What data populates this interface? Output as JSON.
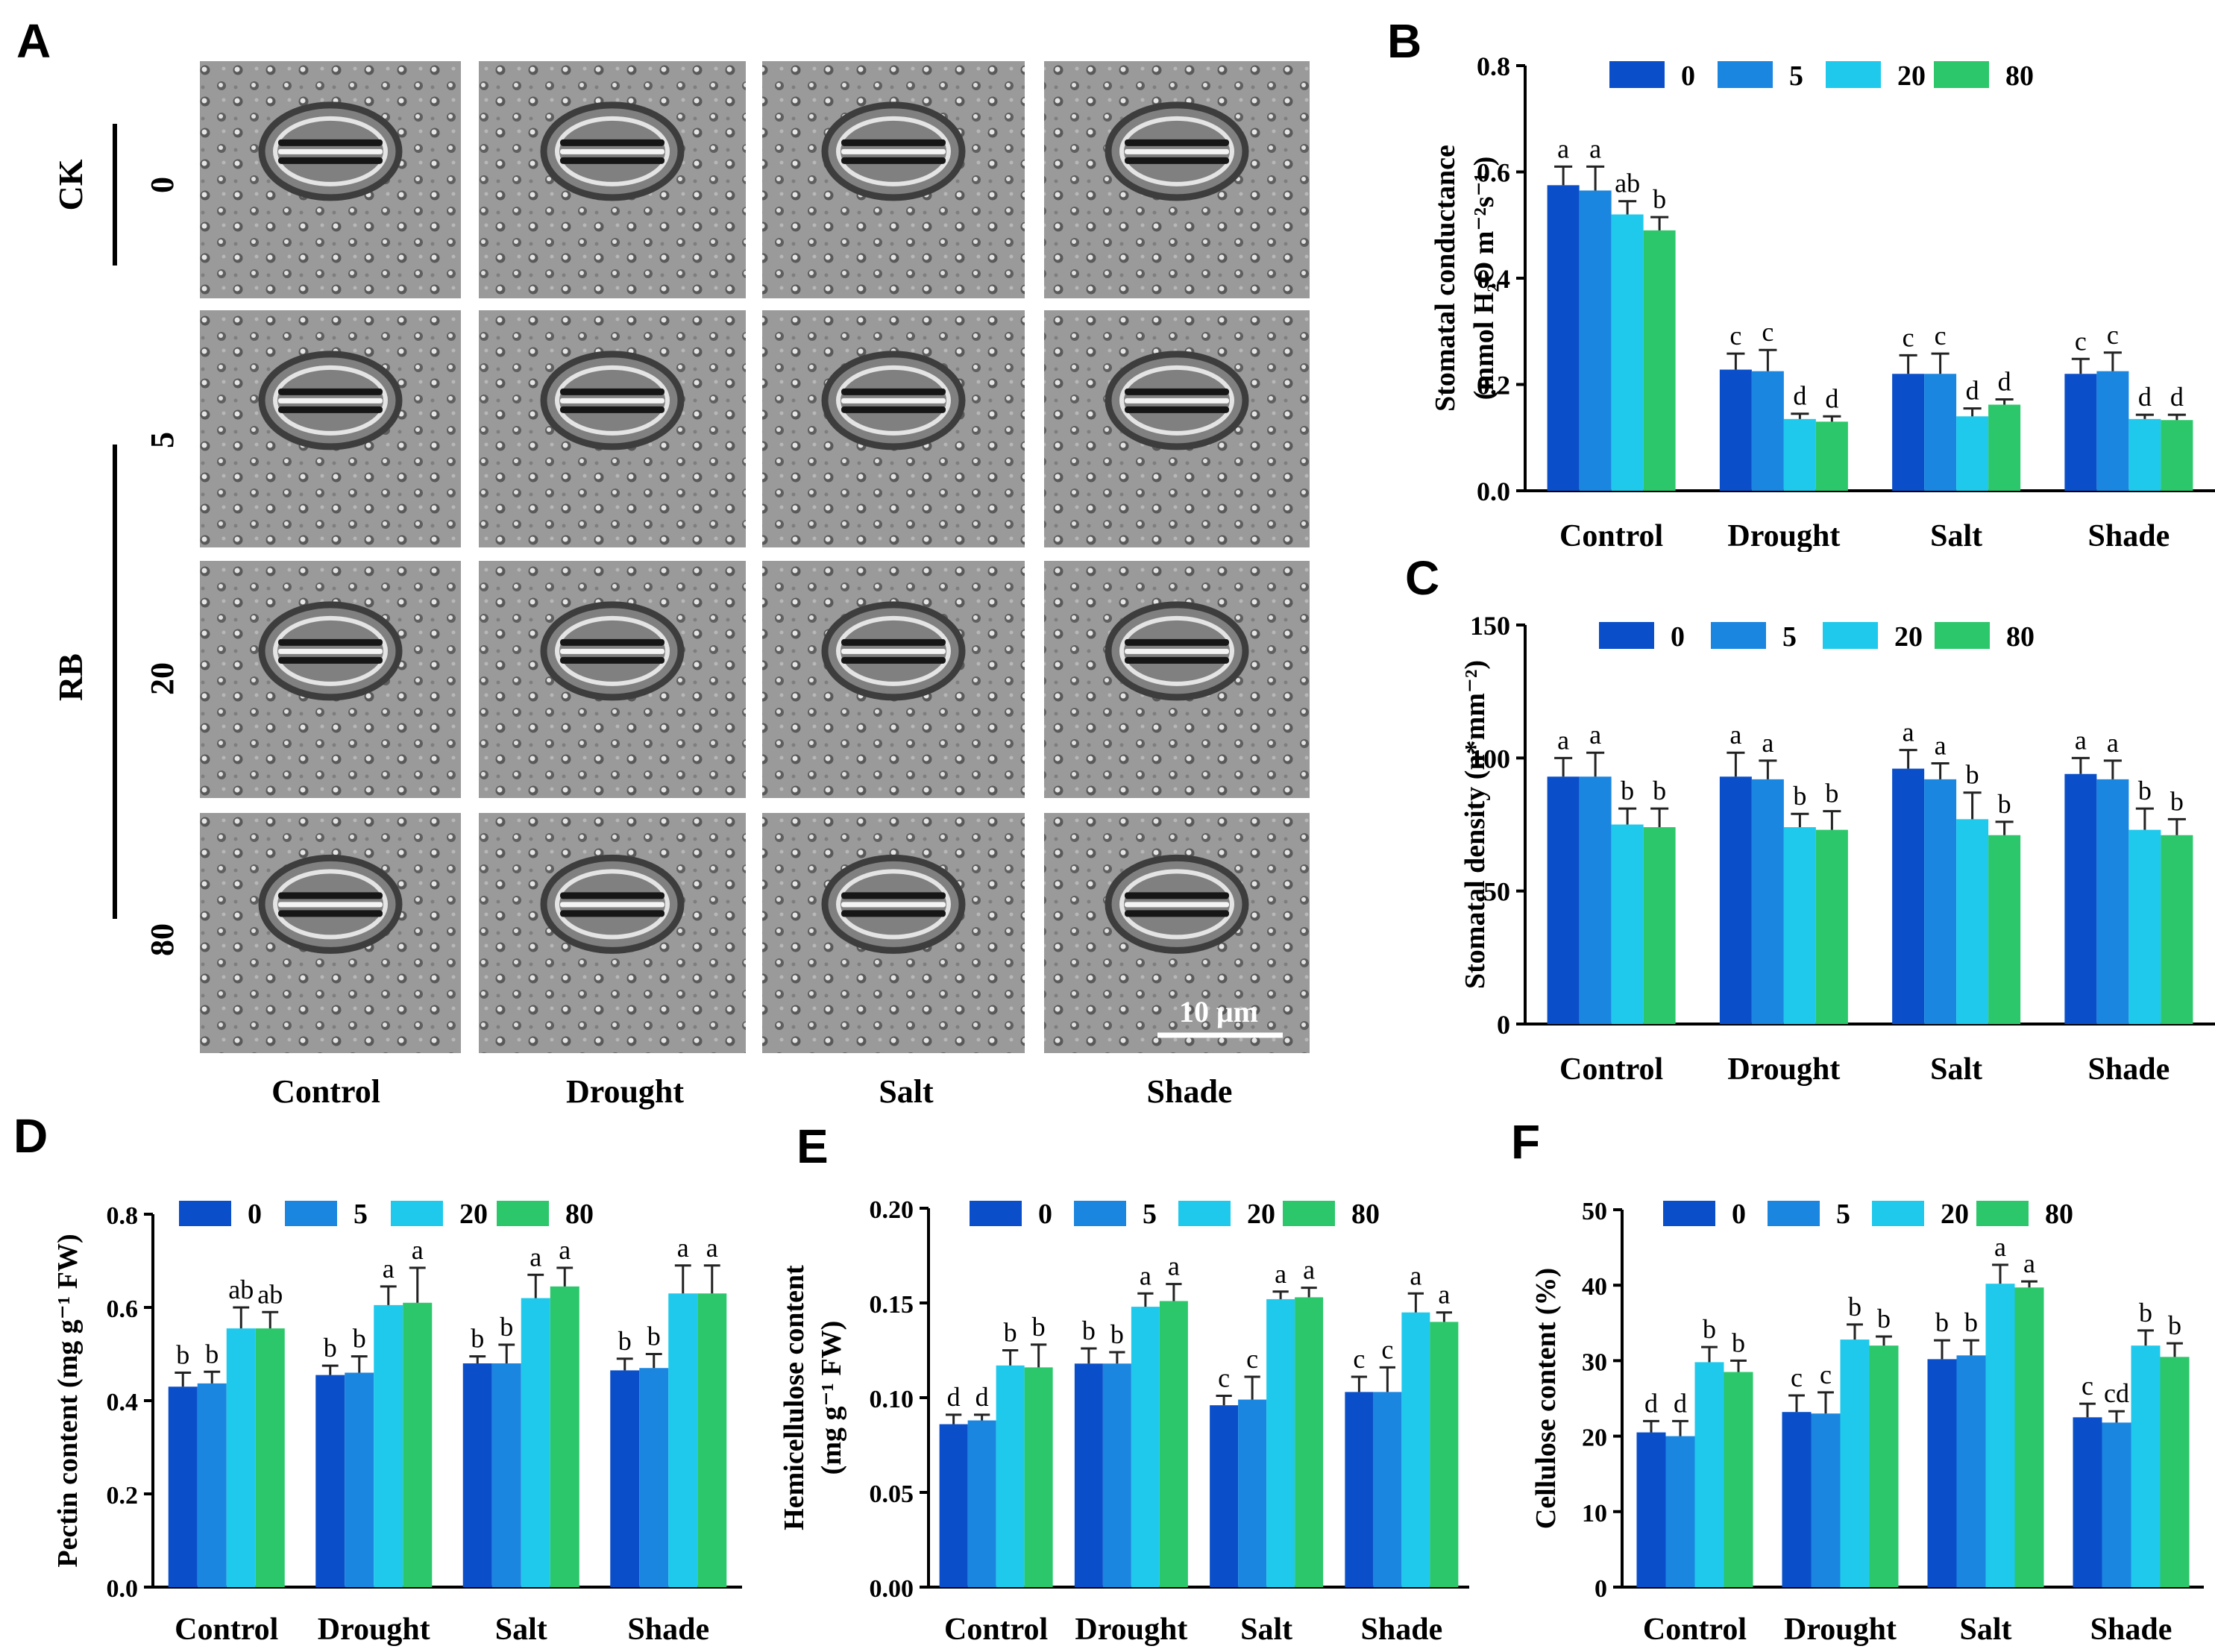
{
  "panel_labels": {
    "A": "A",
    "B": "B",
    "C": "C",
    "D": "D",
    "E": "E",
    "F": "F"
  },
  "micrographs": {
    "row_labels": [
      "0",
      "5",
      "20",
      "80"
    ],
    "group_labels": [
      "CK",
      "RB"
    ],
    "column_labels": [
      "Control",
      "Drought",
      "Salt",
      "Shade"
    ],
    "scale_bar": "10 μm"
  },
  "colors": {
    "s0": "#0a4fc9",
    "s5": "#1a86e0",
    "s20": "#1fc9ec",
    "s80": "#2bc76a"
  },
  "chart_data": [
    {
      "id": "B",
      "type": "bar",
      "title": "",
      "ylabel_lines": [
        "Stomatal conductance",
        "(mmol H₂O m⁻²s⁻¹ )"
      ],
      "xlabel": "",
      "categories": [
        "Control",
        "Drought",
        "Salt",
        "Shade"
      ],
      "legend": [
        "0",
        "5",
        "20",
        "80"
      ],
      "ylim": [
        0,
        0.8
      ],
      "yticks": [
        "0.0",
        "0.2",
        "0.4",
        "0.6",
        "0.8"
      ],
      "series": [
        {
          "name": "0",
          "values": [
            0.575,
            0.228,
            0.22,
            0.22
          ],
          "errors": [
            0.035,
            0.03,
            0.035,
            0.028
          ],
          "letters": [
            "a",
            "c",
            "c",
            "c"
          ]
        },
        {
          "name": "5",
          "values": [
            0.565,
            0.225,
            0.22,
            0.225
          ],
          "errors": [
            0.045,
            0.04,
            0.038,
            0.035
          ],
          "letters": [
            "a",
            "c",
            "c",
            "c"
          ]
        },
        {
          "name": "20",
          "values": [
            0.52,
            0.135,
            0.14,
            0.135
          ],
          "errors": [
            0.025,
            0.01,
            0.015,
            0.008
          ],
          "letters": [
            "ab",
            "d",
            "d",
            "d"
          ]
        },
        {
          "name": "80",
          "values": [
            0.49,
            0.13,
            0.162,
            0.133
          ],
          "errors": [
            0.025,
            0.01,
            0.01,
            0.01
          ],
          "letters": [
            "b",
            "d",
            "d",
            "d"
          ]
        }
      ]
    },
    {
      "id": "C",
      "type": "bar",
      "title": "",
      "ylabel_lines": [
        "Stomatal density (n*mm⁻²)"
      ],
      "xlabel": "",
      "categories": [
        "Control",
        "Drought",
        "Salt",
        "Shade"
      ],
      "legend": [
        "0",
        "5",
        "20",
        "80"
      ],
      "ylim": [
        0,
        150
      ],
      "yticks": [
        "0",
        "50",
        "100",
        "150"
      ],
      "series": [
        {
          "name": "0",
          "values": [
            93,
            93,
            96,
            94
          ],
          "errors": [
            7,
            9,
            7,
            6
          ],
          "letters": [
            "a",
            "a",
            "a",
            "a"
          ]
        },
        {
          "name": "5",
          "values": [
            93,
            92,
            92,
            92
          ],
          "errors": [
            9,
            7,
            6,
            7
          ],
          "letters": [
            "a",
            "a",
            "a",
            "a"
          ]
        },
        {
          "name": "20",
          "values": [
            75,
            74,
            77,
            73
          ],
          "errors": [
            6,
            5,
            10,
            8
          ],
          "letters": [
            "b",
            "b",
            "b",
            "b"
          ]
        },
        {
          "name": "80",
          "values": [
            74,
            73,
            71,
            71
          ],
          "errors": [
            7,
            7,
            5,
            6
          ],
          "letters": [
            "b",
            "b",
            "b",
            "b"
          ]
        }
      ]
    },
    {
      "id": "D",
      "type": "bar",
      "title": "",
      "ylabel_lines": [
        "Pectin content (mg g⁻¹ FW)"
      ],
      "xlabel": "",
      "categories": [
        "Control",
        "Drought",
        "Salt",
        "Shade"
      ],
      "legend": [
        "0",
        "5",
        "20",
        "80"
      ],
      "ylim": [
        0,
        0.8
      ],
      "yticks": [
        "0.0",
        "0.2",
        "0.4",
        "0.6",
        "0.8"
      ],
      "series": [
        {
          "name": "0",
          "values": [
            0.43,
            0.455,
            0.48,
            0.465
          ],
          "errors": [
            0.03,
            0.02,
            0.015,
            0.025
          ],
          "letters": [
            "b",
            "b",
            "b",
            "b"
          ]
        },
        {
          "name": "5",
          "values": [
            0.437,
            0.46,
            0.48,
            0.47
          ],
          "errors": [
            0.025,
            0.035,
            0.04,
            0.03
          ],
          "letters": [
            "b",
            "b",
            "b",
            "b"
          ]
        },
        {
          "name": "20",
          "values": [
            0.555,
            0.605,
            0.62,
            0.63
          ],
          "errors": [
            0.045,
            0.04,
            0.05,
            0.06
          ],
          "letters": [
            "ab",
            "a",
            "a",
            "a"
          ]
        },
        {
          "name": "80",
          "values": [
            0.555,
            0.61,
            0.645,
            0.63
          ],
          "errors": [
            0.035,
            0.075,
            0.04,
            0.06
          ],
          "letters": [
            "ab",
            "a",
            "a",
            "a"
          ]
        }
      ]
    },
    {
      "id": "E",
      "type": "bar",
      "title": "",
      "ylabel_lines": [
        "Hemicellulose content",
        "(mg g⁻¹ FW)"
      ],
      "xlabel": "",
      "categories": [
        "Control",
        "Drought",
        "Salt",
        "Shade"
      ],
      "legend": [
        "0",
        "5",
        "20",
        "80"
      ],
      "ylim": [
        0,
        0.2
      ],
      "yticks": [
        "0.00",
        "0.05",
        "0.10",
        "0.15",
        "0.20"
      ],
      "series": [
        {
          "name": "0",
          "values": [
            0.086,
            0.118,
            0.096,
            0.103
          ],
          "errors": [
            0.005,
            0.008,
            0.005,
            0.008
          ],
          "letters": [
            "d",
            "b",
            "c",
            "c"
          ]
        },
        {
          "name": "5",
          "values": [
            0.088,
            0.118,
            0.099,
            0.103
          ],
          "errors": [
            0.003,
            0.006,
            0.012,
            0.013
          ],
          "letters": [
            "d",
            "b",
            "c",
            "c"
          ]
        },
        {
          "name": "20",
          "values": [
            0.117,
            0.148,
            0.152,
            0.145
          ],
          "errors": [
            0.008,
            0.007,
            0.004,
            0.01
          ],
          "letters": [
            "b",
            "a",
            "a",
            "a"
          ]
        },
        {
          "name": "80",
          "values": [
            0.116,
            0.151,
            0.153,
            0.14
          ],
          "errors": [
            0.012,
            0.009,
            0.005,
            0.005
          ],
          "letters": [
            "b",
            "a",
            "a",
            "a"
          ]
        }
      ]
    },
    {
      "id": "F",
      "type": "bar",
      "title": "",
      "ylabel_lines": [
        "Cellulose content (%)"
      ],
      "xlabel": "",
      "categories": [
        "Control",
        "Drought",
        "Salt",
        "Shade"
      ],
      "legend": [
        "0",
        "5",
        "20",
        "80"
      ],
      "ylim": [
        0,
        50
      ],
      "yticks": [
        "0",
        "10",
        "20",
        "30",
        "40",
        "50"
      ],
      "series": [
        {
          "name": "0",
          "values": [
            20.5,
            23.2,
            30.2,
            22.5
          ],
          "errors": [
            1.5,
            2.2,
            2.5,
            1.8
          ],
          "letters": [
            "d",
            "c",
            "b",
            "c"
          ]
        },
        {
          "name": "5",
          "values": [
            20.0,
            23.0,
            30.7,
            21.8
          ],
          "errors": [
            2.0,
            2.8,
            2.0,
            1.5
          ],
          "letters": [
            "d",
            "c",
            "b",
            "cd"
          ]
        },
        {
          "name": "20",
          "values": [
            29.8,
            32.8,
            40.2,
            32.0
          ],
          "errors": [
            2.0,
            2.0,
            2.5,
            2.0
          ],
          "letters": [
            "b",
            "b",
            "a",
            "b"
          ]
        },
        {
          "name": "80",
          "values": [
            28.5,
            32.0,
            39.7,
            30.5
          ],
          "errors": [
            1.5,
            1.2,
            0.8,
            1.8
          ],
          "letters": [
            "b",
            "b",
            "a",
            "b"
          ]
        }
      ]
    }
  ]
}
